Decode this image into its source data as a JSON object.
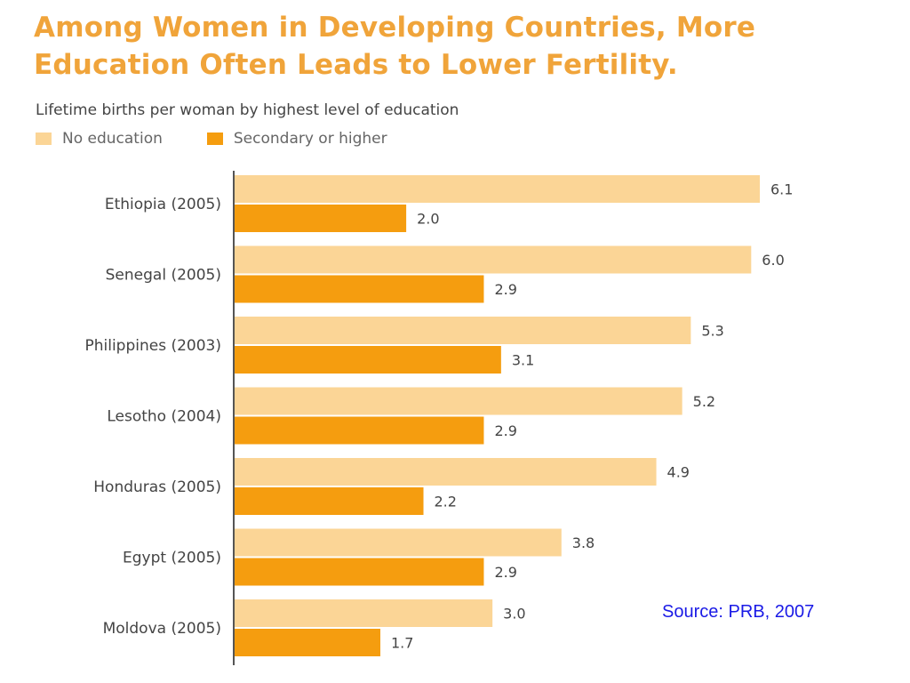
{
  "title_line1": "Among Women in Developing Countries, More",
  "title_line2": "Education Often Leads to Lower Fertility.",
  "source": "Source: PRB, 2007",
  "colors": {
    "title": "#f0a43a",
    "no_education": "#fbd596",
    "secondary_or_higher": "#f59d0f",
    "source_text": "#1a1ae6"
  },
  "chart_data": {
    "type": "bar",
    "orientation": "horizontal",
    "subtitle": "Lifetime births per woman by highest level of education",
    "legend": [
      "No education",
      "Secondary or higher"
    ],
    "legend_position": "top-left",
    "categories": [
      "Ethiopia (2005)",
      "Senegal (2005)",
      "Philippines (2003)",
      "Lesotho (2004)",
      "Honduras (2005)",
      "Egypt (2005)",
      "Moldova (2005)"
    ],
    "series": [
      {
        "name": "No education",
        "values": [
          6.1,
          6.0,
          5.3,
          5.2,
          4.9,
          3.8,
          3.0
        ],
        "labels": [
          "6.1",
          "6.0",
          "5.3",
          "5.2",
          "4.9",
          "3.8",
          "3.0"
        ]
      },
      {
        "name": "Secondary or higher",
        "values": [
          2.0,
          2.9,
          3.1,
          2.9,
          2.2,
          2.9,
          1.7
        ],
        "labels": [
          "2.0",
          "2.9",
          "3.1",
          "2.9",
          "2.2",
          "2.9",
          "1.7"
        ]
      }
    ],
    "xlim": [
      0,
      6.1
    ],
    "grid": false
  }
}
